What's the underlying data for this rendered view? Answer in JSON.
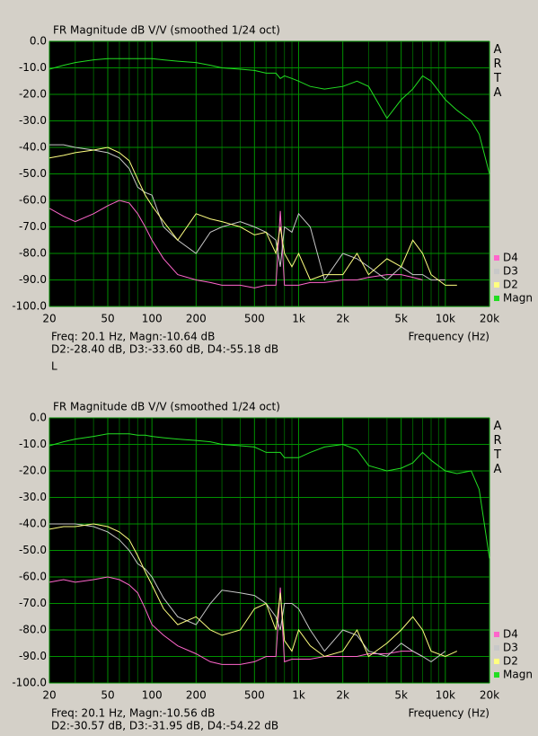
{
  "chart_data": [
    {
      "type": "line",
      "title": "FR Magnitude dB V/V (smoothed 1/24 oct)",
      "watermark": "ARTA",
      "xlabel": "Frequency (Hz)",
      "log_x": true,
      "grid": true,
      "annotations": [
        "Freq: 20.1 Hz, Magn:-10.64 dB",
        "D2:-28.40 dB, D3:-33.60 dB, D4:-55.18 dB",
        "L"
      ],
      "xlim": [
        20,
        20000
      ],
      "ylim": [
        -100,
        0
      ],
      "xticks": [
        20,
        50,
        100,
        200,
        500,
        {
          "value": 1000,
          "label": "1k"
        },
        {
          "value": 2000,
          "label": "2k"
        },
        {
          "value": 5000,
          "label": "5k"
        },
        {
          "value": 10000,
          "label": "10k"
        },
        {
          "value": 20000,
          "label": "20k"
        }
      ],
      "xminor": [
        30,
        40,
        60,
        70,
        80,
        90,
        300,
        400,
        600,
        700,
        800,
        900,
        3000,
        4000,
        6000,
        7000,
        8000,
        9000
      ],
      "yticks": [
        {
          "value": 0,
          "label": "0.0"
        },
        {
          "value": -10,
          "label": "-10.0"
        },
        {
          "value": -20,
          "label": "-20.0"
        },
        {
          "value": -30,
          "label": "-30.0"
        },
        {
          "value": -40,
          "label": "-40.0"
        },
        {
          "value": -50,
          "label": "-50.0"
        },
        {
          "value": -60,
          "label": "-60.0"
        },
        {
          "value": -70,
          "label": "-70.0"
        },
        {
          "value": -80,
          "label": "-80.0"
        },
        {
          "value": -90,
          "label": "-90.0"
        },
        {
          "value": -100,
          "label": "-100.0"
        }
      ],
      "x": [
        20,
        25,
        30,
        40,
        50,
        60,
        70,
        80,
        90,
        100,
        120,
        150,
        200,
        250,
        300,
        400,
        500,
        600,
        700,
        750,
        800,
        900,
        1000,
        1200,
        1500,
        2000,
        2500,
        3000,
        4000,
        5000,
        6000,
        7000,
        8000,
        10000,
        12000,
        15000,
        17000,
        20000
      ],
      "series": [
        {
          "name": "D4",
          "color": "#ff66cc",
          "values": [
            -63,
            -66,
            -68,
            -65,
            -62,
            -60,
            -61,
            -65,
            -70,
            -75,
            -82,
            -88,
            -90,
            -91,
            -92,
            -92,
            -93,
            -92,
            -92,
            -64,
            -92,
            -92,
            -92,
            -91,
            -91,
            -90,
            -90,
            -89,
            -88,
            -88,
            -89,
            -90,
            null,
            null,
            null,
            null,
            null,
            null
          ]
        },
        {
          "name": "D3",
          "color": "#c8c8c8",
          "values": [
            -39,
            -39,
            -40,
            -41,
            -42,
            -44,
            -48,
            -55,
            -57,
            -58,
            -70,
            -75,
            -80,
            -72,
            -70,
            -68,
            -70,
            -72,
            -75,
            -85,
            -70,
            -72,
            -65,
            -70,
            -90,
            -80,
            -82,
            -85,
            -90,
            -85,
            -88,
            -88,
            -90,
            -90,
            null,
            null,
            null,
            null
          ]
        },
        {
          "name": "D2",
          "color": "#ffff80",
          "values": [
            -44,
            -43,
            -42,
            -41,
            -40,
            -42,
            -45,
            -52,
            -58,
            -62,
            -68,
            -75,
            -65,
            -67,
            -68,
            -70,
            -73,
            -72,
            -80,
            -70,
            -80,
            -85,
            -80,
            -90,
            -88,
            -88,
            -80,
            -88,
            -82,
            -85,
            -75,
            -80,
            -88,
            -92,
            -92,
            null,
            null,
            null
          ]
        },
        {
          "name": "Magn",
          "color": "#22dd22",
          "values": [
            -10.5,
            -9,
            -8,
            -7,
            -6.5,
            -6.5,
            -6.5,
            -6.5,
            -6.5,
            -6.5,
            -7,
            -7.5,
            -8,
            -9,
            -10,
            -10.5,
            -11,
            -12,
            -12,
            -14,
            -13,
            -14,
            -15,
            -17,
            -18,
            -17,
            -15,
            -17,
            -29,
            -22,
            -18,
            -13,
            -15,
            -22,
            -26,
            -30,
            -35,
            -50
          ]
        }
      ]
    },
    {
      "type": "line",
      "title": "FR Magnitude dB V/V (smoothed 1/24 oct)",
      "watermark": "ARTA",
      "xlabel": "Frequency (Hz)",
      "log_x": true,
      "grid": true,
      "annotations": [
        "Freq: 20.1 Hz, Magn:-10.56 dB",
        "D2:-30.57 dB, D3:-31.95 dB, D4:-54.22 dB"
      ],
      "xlim": [
        20,
        20000
      ],
      "ylim": [
        -100,
        0
      ],
      "xticks": [
        20,
        50,
        100,
        200,
        500,
        {
          "value": 1000,
          "label": "1k"
        },
        {
          "value": 2000,
          "label": "2k"
        },
        {
          "value": 5000,
          "label": "5k"
        },
        {
          "value": 10000,
          "label": "10k"
        },
        {
          "value": 20000,
          "label": "20k"
        }
      ],
      "xminor": [
        30,
        40,
        60,
        70,
        80,
        90,
        300,
        400,
        600,
        700,
        800,
        900,
        3000,
        4000,
        6000,
        7000,
        8000,
        9000
      ],
      "yticks": [
        {
          "value": 0,
          "label": "0.0"
        },
        {
          "value": -10,
          "label": "-10.0"
        },
        {
          "value": -20,
          "label": "-20.0"
        },
        {
          "value": -30,
          "label": "-30.0"
        },
        {
          "value": -40,
          "label": "-40.0"
        },
        {
          "value": -50,
          "label": "-50.0"
        },
        {
          "value": -60,
          "label": "-60.0"
        },
        {
          "value": -70,
          "label": "-70.0"
        },
        {
          "value": -80,
          "label": "-80.0"
        },
        {
          "value": -90,
          "label": "-90.0"
        },
        {
          "value": -100,
          "label": "-100.0"
        }
      ],
      "x": [
        20,
        25,
        30,
        40,
        50,
        60,
        70,
        80,
        90,
        100,
        120,
        150,
        200,
        250,
        300,
        400,
        500,
        600,
        700,
        750,
        800,
        900,
        1000,
        1200,
        1500,
        2000,
        2500,
        3000,
        4000,
        5000,
        6000,
        7000,
        8000,
        10000,
        12000,
        15000,
        17000,
        20000
      ],
      "series": [
        {
          "name": "D4",
          "color": "#ff66cc",
          "values": [
            -62,
            -61,
            -62,
            -61,
            -60,
            -61,
            -63,
            -66,
            -72,
            -78,
            -82,
            -86,
            -89,
            -92,
            -93,
            -93,
            -92,
            -90,
            -90,
            -64,
            -92,
            -91,
            -91,
            -91,
            -90,
            -90,
            -90,
            -89,
            -89,
            -88,
            -88,
            -90,
            null,
            null,
            null,
            null,
            null,
            null
          ]
        },
        {
          "name": "D3",
          "color": "#c8c8c8",
          "values": [
            -40,
            -40,
            -40,
            -41,
            -43,
            -46,
            -50,
            -55,
            -57,
            -60,
            -68,
            -75,
            -78,
            -70,
            -65,
            -66,
            -67,
            -70,
            -75,
            -80,
            -70,
            -70,
            -72,
            -80,
            -88,
            -80,
            -82,
            -88,
            -90,
            -85,
            -88,
            -90,
            -92,
            -88,
            null,
            null,
            null,
            null
          ]
        },
        {
          "name": "D2",
          "color": "#ffff80",
          "values": [
            -42,
            -41,
            -41,
            -40,
            -41,
            -43,
            -46,
            -52,
            -58,
            -63,
            -72,
            -78,
            -75,
            -80,
            -82,
            -80,
            -72,
            -70,
            -80,
            -66,
            -84,
            -88,
            -80,
            -86,
            -90,
            -88,
            -80,
            -90,
            -85,
            -80,
            -75,
            -80,
            -88,
            -90,
            -88,
            null,
            null,
            null
          ]
        },
        {
          "name": "Magn",
          "color": "#22dd22",
          "values": [
            -10.5,
            -9,
            -8,
            -7,
            -6,
            -6,
            -6,
            -6.5,
            -6.5,
            -7,
            -7.5,
            -8,
            -8.5,
            -9,
            -10,
            -10.5,
            -11,
            -13,
            -13,
            -13,
            -15,
            -15,
            -15,
            -13,
            -11,
            -10,
            -12,
            -18,
            -20,
            -19,
            -17,
            -13,
            -16,
            -20,
            -21,
            -20,
            -27,
            -53
          ]
        }
      ]
    }
  ]
}
